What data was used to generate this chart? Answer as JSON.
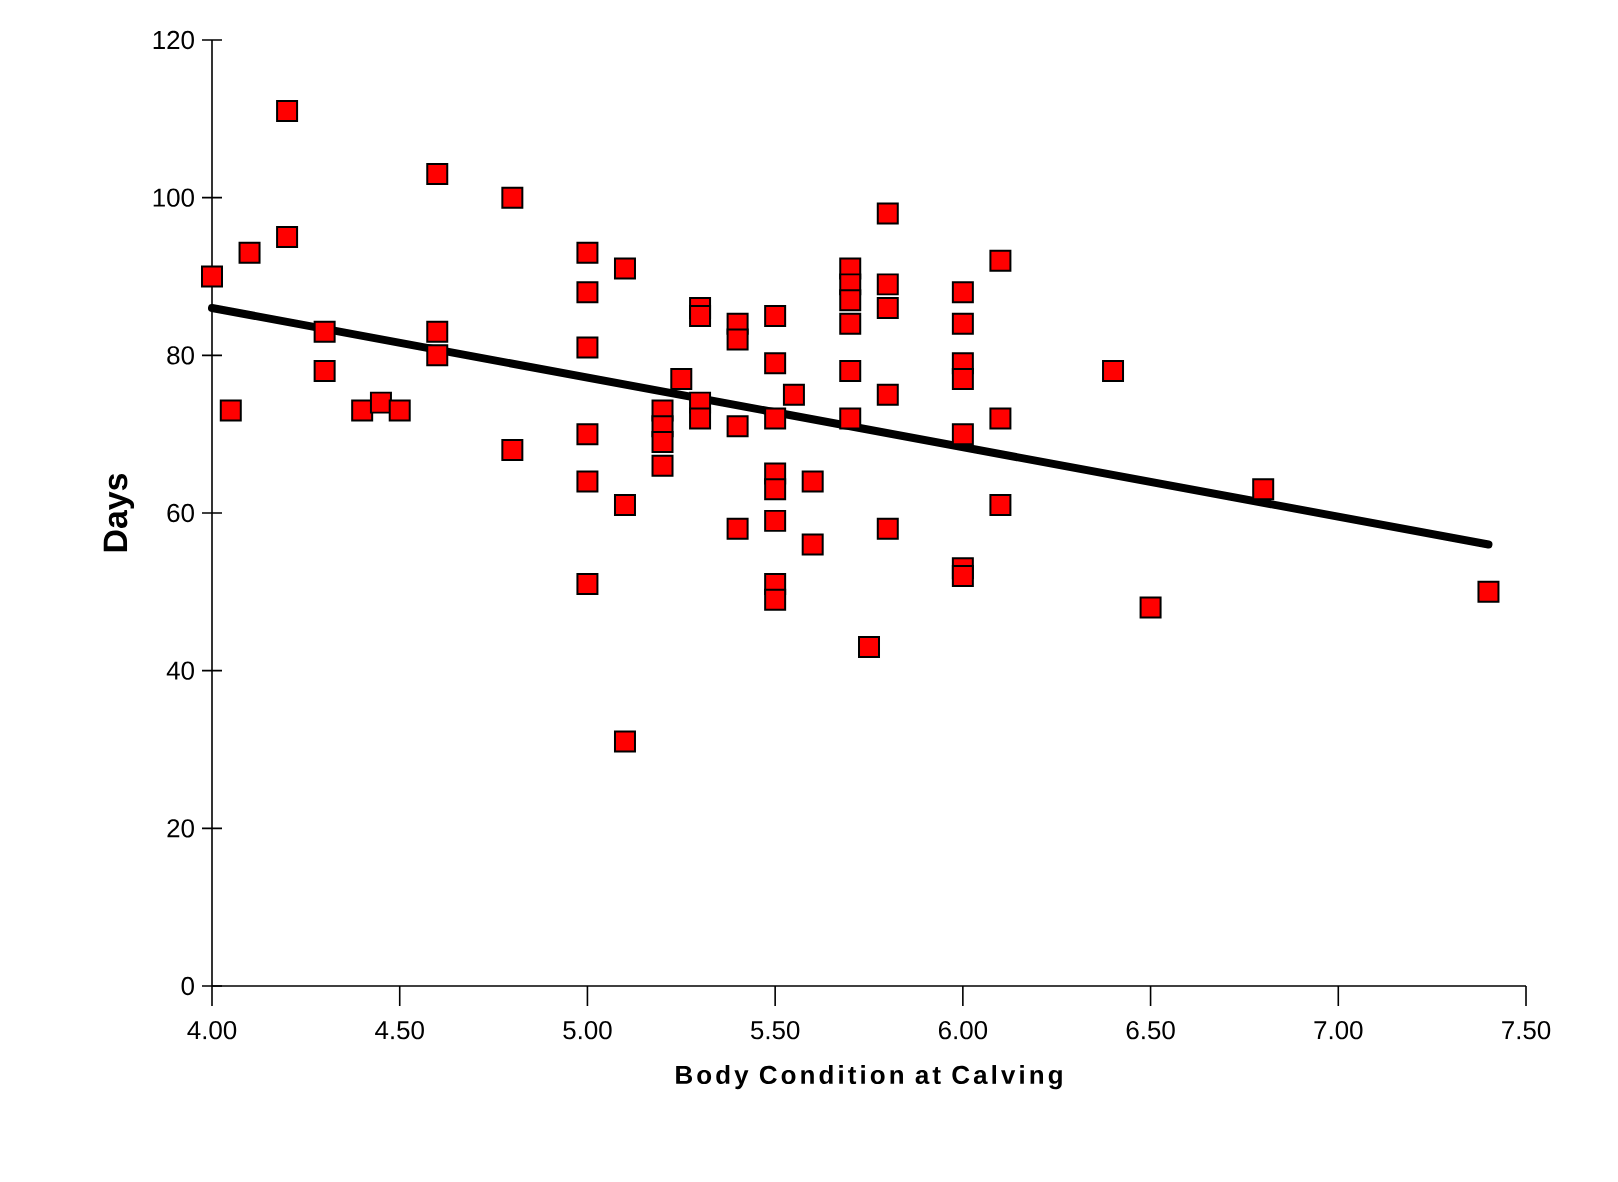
{
  "chart_data": {
    "type": "scatter",
    "xlabel": "Body Condition at Calving",
    "ylabel": "Days",
    "xlim": [
      4.0,
      7.5
    ],
    "ylim": [
      0,
      120
    ],
    "xticks": [
      {
        "value": 4.0,
        "label": "4.00"
      },
      {
        "value": 4.5,
        "label": "4.50"
      },
      {
        "value": 5.0,
        "label": "5.00"
      },
      {
        "value": 5.5,
        "label": "5.50"
      },
      {
        "value": 6.0,
        "label": "6.00"
      },
      {
        "value": 6.5,
        "label": "6.50"
      },
      {
        "value": 7.0,
        "label": "7.00"
      },
      {
        "value": 7.5,
        "label": "7.50"
      }
    ],
    "yticks": [
      0,
      20,
      40,
      60,
      80,
      100,
      120
    ],
    "grid": false,
    "marker": "square",
    "series": [
      {
        "color": "#ff0000",
        "x": [
          4.0,
          4.05,
          4.1,
          4.2,
          4.2,
          4.3,
          4.3,
          4.4,
          4.45,
          4.5,
          4.6,
          4.6,
          4.6,
          4.8,
          4.8,
          5.0,
          5.0,
          5.0,
          5.0,
          5.0,
          5.0,
          5.1,
          5.1,
          5.1,
          5.2,
          5.2,
          5.2,
          5.2,
          5.25,
          5.3,
          5.3,
          5.3,
          5.3,
          5.4,
          5.4,
          5.4,
          5.4,
          5.5,
          5.5,
          5.5,
          5.5,
          5.5,
          5.5,
          5.5,
          5.5,
          5.55,
          5.6,
          5.6,
          5.7,
          5.7,
          5.7,
          5.7,
          5.7,
          5.7,
          5.75,
          5.8,
          5.8,
          5.8,
          5.8,
          5.8,
          6.0,
          6.0,
          6.0,
          6.0,
          6.0,
          6.0,
          6.0,
          6.1,
          6.1,
          6.1,
          6.4,
          6.5,
          6.8,
          7.4
        ],
        "values": [
          90,
          73,
          93,
          95,
          111,
          83,
          78,
          73,
          74,
          73,
          103,
          83,
          80,
          100,
          68,
          93,
          88,
          81,
          70,
          64,
          51,
          91,
          61,
          31,
          73,
          71,
          69,
          66,
          77,
          86,
          85,
          74,
          72,
          84,
          82,
          71,
          58,
          85,
          79,
          72,
          65,
          63,
          59,
          51,
          49,
          75,
          64,
          56,
          91,
          89,
          87,
          84,
          78,
          72,
          43,
          98,
          89,
          86,
          75,
          58,
          88,
          84,
          79,
          77,
          70,
          53,
          52,
          92,
          72,
          61,
          78,
          48,
          63,
          50
        ]
      },
      {
        "type": "line",
        "color": "#000000",
        "marker": "none",
        "x": [
          4.0,
          7.4
        ],
        "values": [
          86,
          56
        ]
      }
    ]
  }
}
